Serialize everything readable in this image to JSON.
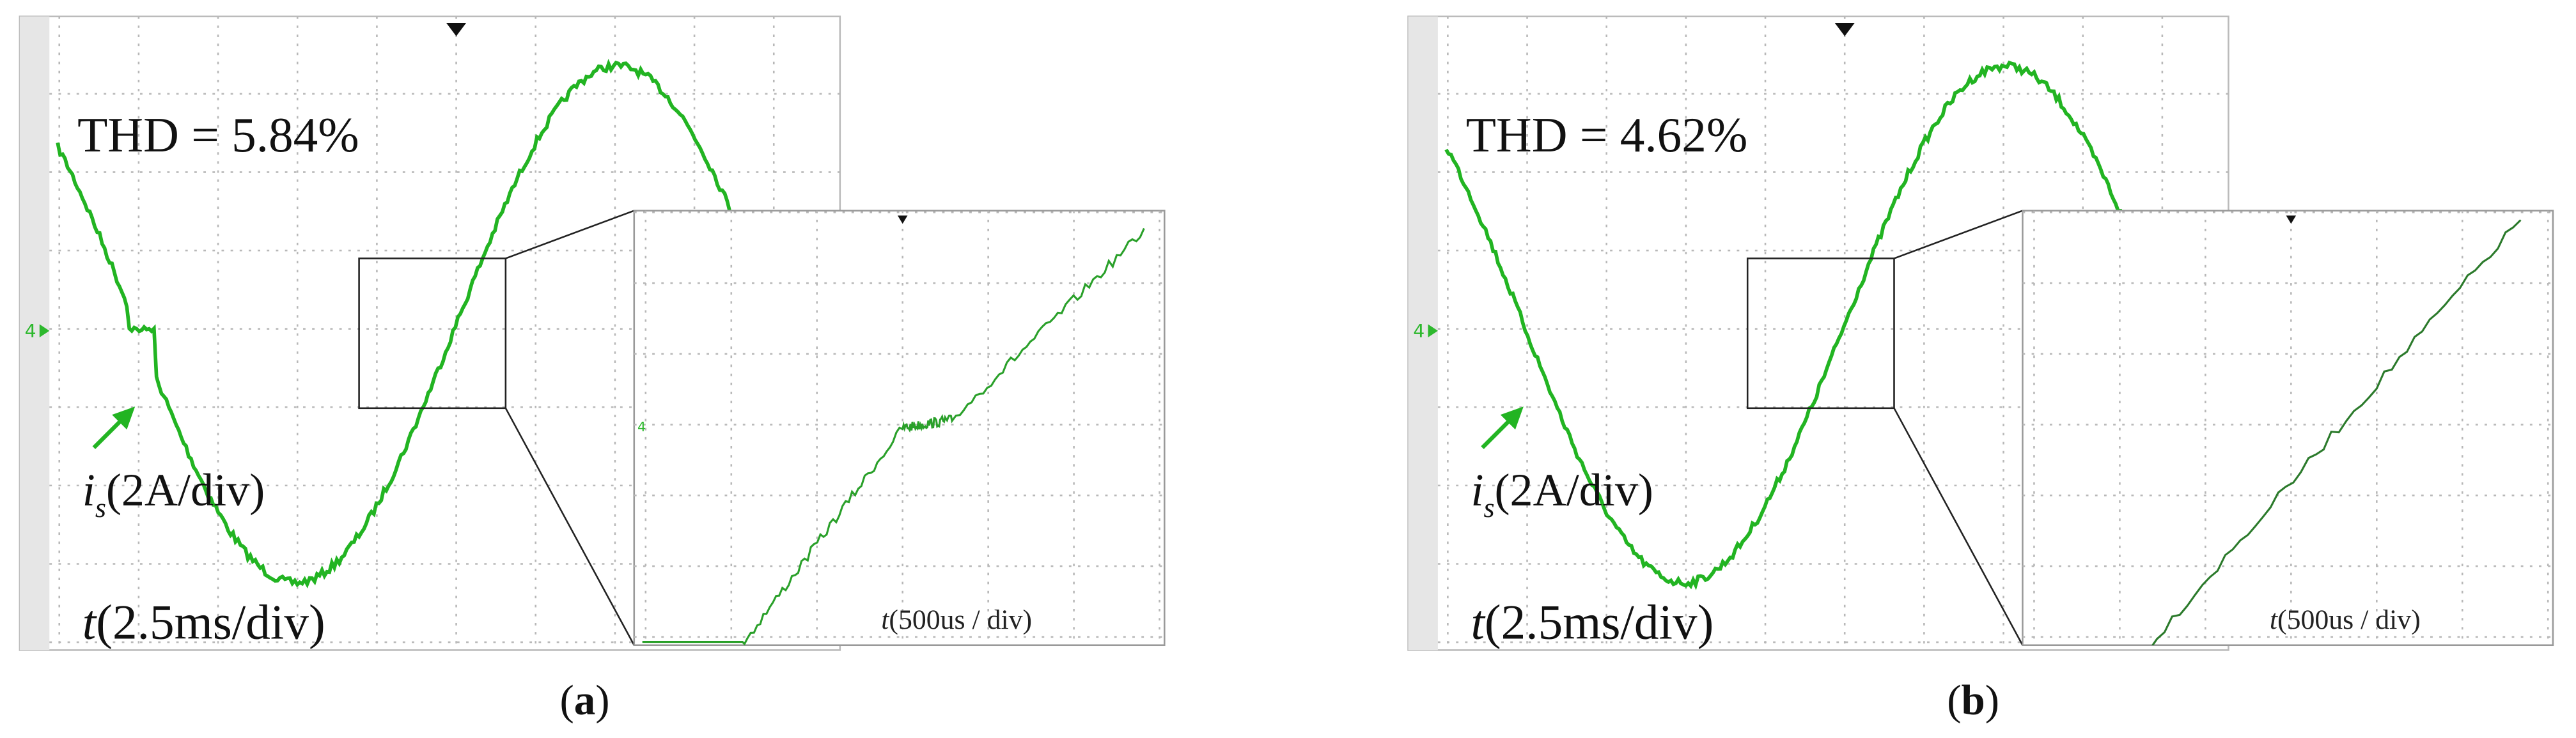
{
  "panels": [
    {
      "thd": "THD = 5.84%",
      "current_label": {
        "symbol": "i",
        "subscript": "s",
        "scale": "(2A/div)"
      },
      "time_label": {
        "symbol": "t",
        "scale": "(2.5ms/div)"
      },
      "zoom_time_label": {
        "symbol": "t",
        "scale": "(500us / div)"
      },
      "channel_marker": "4",
      "zoom_channel_marker": "4",
      "caption": [
        "(",
        "a",
        ")"
      ]
    },
    {
      "thd": "THD = 4.62%",
      "current_label": {
        "symbol": "i",
        "subscript": "s",
        "scale": "(2A/div)"
      },
      "time_label": {
        "symbol": "t",
        "scale": "(2.5ms/div)"
      },
      "zoom_time_label": {
        "symbol": "t",
        "scale": "(500us / div)"
      },
      "channel_marker": "4",
      "caption": [
        "(",
        "b",
        ")"
      ]
    }
  ]
}
